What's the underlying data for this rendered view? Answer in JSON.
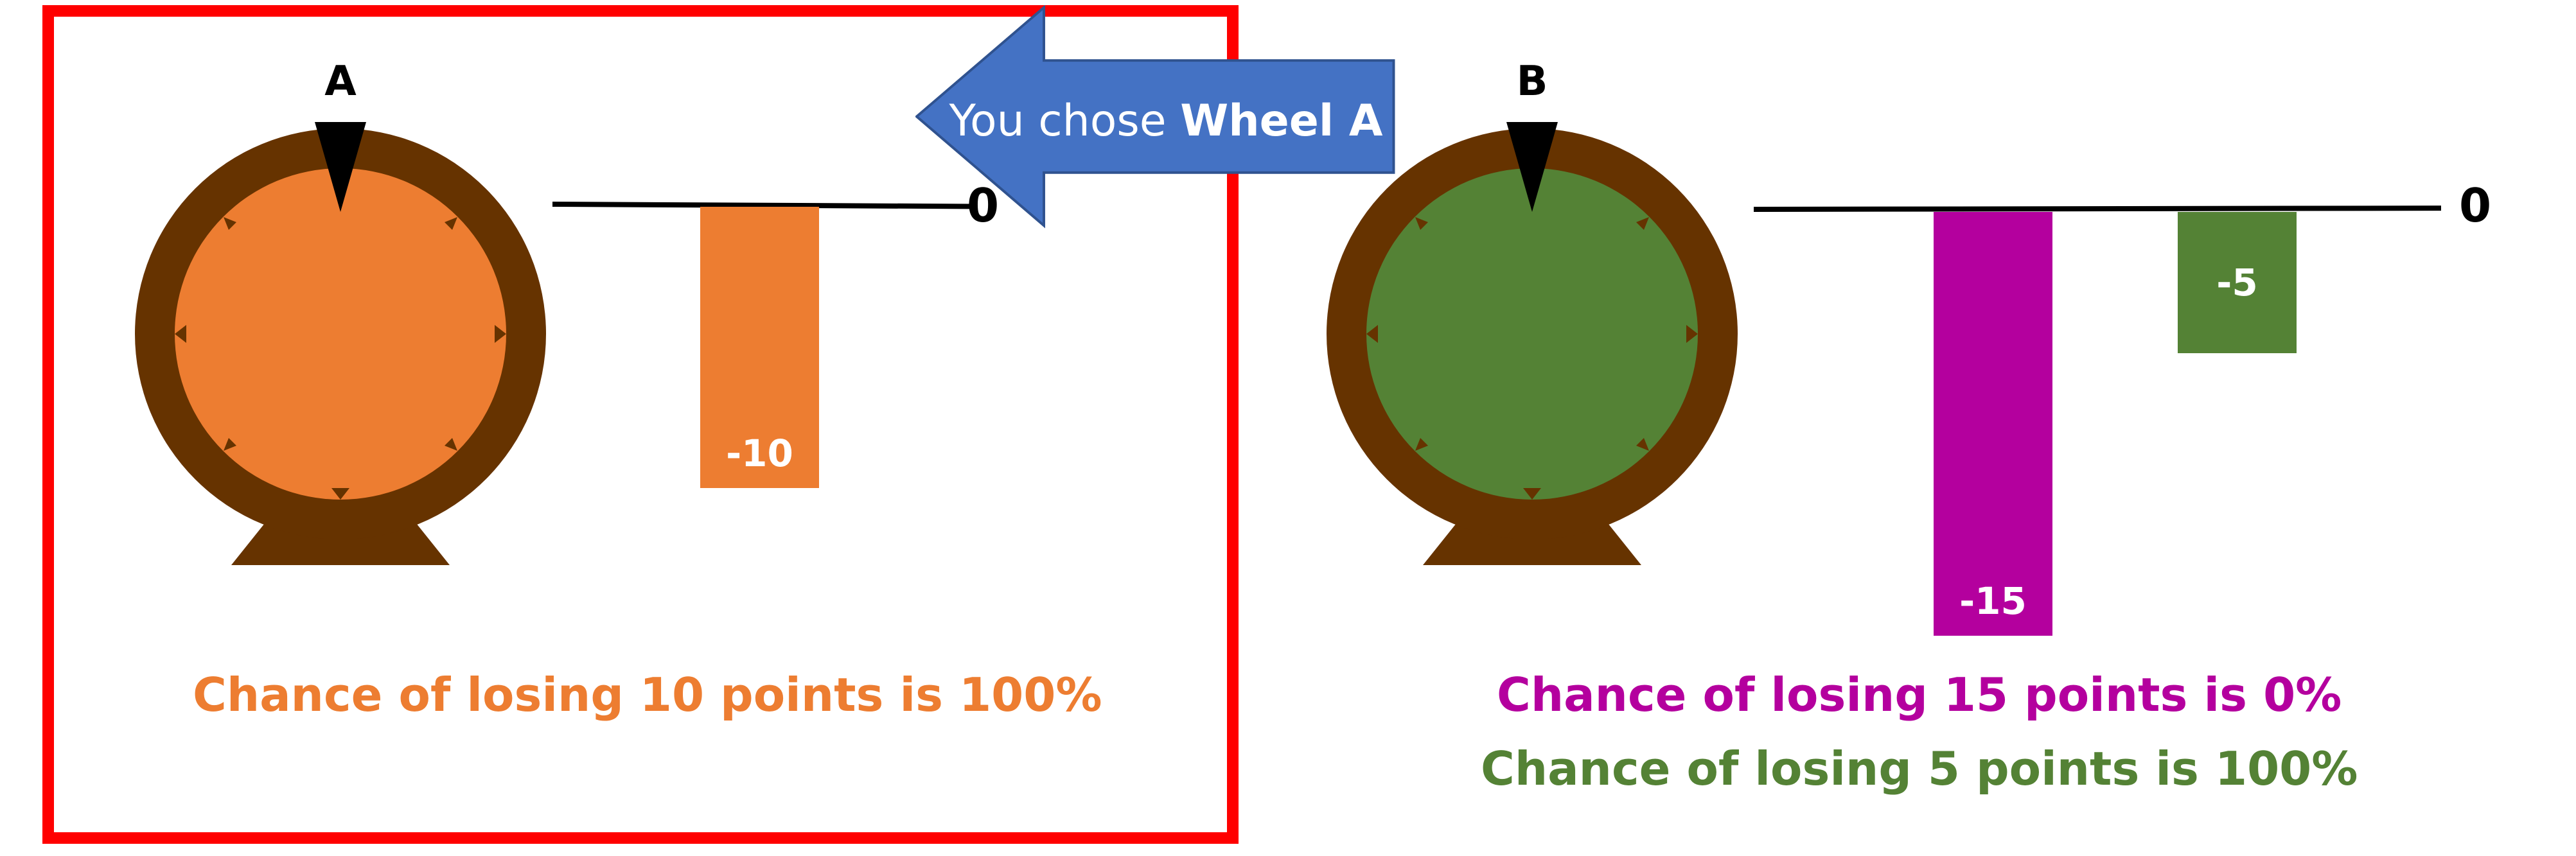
{
  "wheel_a": {
    "label": "A",
    "color": "#ed7d31",
    "bar_value": "-10",
    "baseline_label": "0",
    "chance_text": "Chance of losing 10 points is 100%"
  },
  "wheel_b": {
    "label": "B",
    "color": "#548235",
    "bars": [
      {
        "value": "-15",
        "color": "#b4009e"
      },
      {
        "value": "-5",
        "color": "#548235"
      }
    ],
    "baseline_label": "0",
    "chance_text_1": "Chance of losing 15 points is 0%",
    "chance_text_1_color": "#b4009e",
    "chance_text_2": "Chance of losing 5 points is 100%",
    "chance_text_2_color": "#548235"
  },
  "callout": {
    "prefix": "You chose ",
    "choice": "Wheel A",
    "color": "#4472c4"
  },
  "colors": {
    "wheel_rim": "#663300",
    "selection_border": "#ff0000",
    "wheel_a_text": "#ed7d31"
  }
}
